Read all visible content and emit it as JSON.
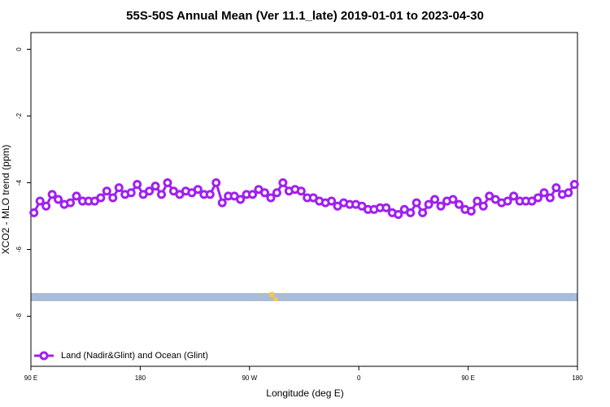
{
  "chart_data": {
    "type": "line",
    "title": "55S-50S Annual Mean (Ver 11.1_late)   2019-01-01 to 2023-04-30",
    "x_label": "Longitude (deg E)",
    "y_label": "XCO2 - MLO trend (ppm)",
    "xlim": [
      90,
      540
    ],
    "ylim": [
      -9.5,
      0.5
    ],
    "xticks": [
      {
        "value": 90,
        "label": "90 E"
      },
      180,
      {
        "value": 270,
        "label": "90 W"
      },
      {
        "value": 360,
        "label": "0"
      },
      {
        "value": 450,
        "label": "90 E"
      },
      {
        "value": 540,
        "label": "180"
      }
    ],
    "yticks": [
      0,
      -2,
      -4,
      -6,
      -8
    ],
    "legend": "bottom-left",
    "x": [
      92.5,
      97.5,
      102.5,
      107.5,
      112.5,
      117.5,
      122.5,
      127.5,
      132.5,
      137.5,
      142.5,
      147.5,
      152.5,
      157.5,
      162.5,
      167.5,
      172.5,
      177.5,
      182.5,
      187.5,
      192.5,
      197.5,
      202.5,
      207.5,
      212.5,
      217.5,
      222.5,
      227.5,
      232.5,
      237.5,
      242.5,
      247.5,
      252.5,
      257.5,
      262.5,
      267.5,
      272.5,
      277.5,
      282.5,
      287.5,
      292.5,
      297.5,
      302.5,
      307.5,
      312.5,
      317.5,
      322.5,
      327.5,
      332.5,
      337.5,
      342.5,
      347.5,
      352.5,
      357.5,
      362.5,
      367.5,
      372.5,
      377.5,
      382.5,
      387.5,
      392.5,
      397.5,
      402.5,
      407.5,
      412.5,
      417.5,
      422.5,
      427.5,
      432.5,
      437.5,
      442.5,
      447.5,
      452.5,
      457.5,
      462.5,
      467.5,
      472.5,
      477.5,
      482.5,
      487.5,
      492.5,
      497.5,
      502.5,
      507.5,
      512.5,
      517.5,
      522.5,
      527.5,
      532.5,
      537.5
    ],
    "series": [
      {
        "name": "Land (Nadir&Glint) and Ocean (Glint)",
        "color": "#a020f0",
        "values": [
          -4.9,
          -4.55,
          -4.7,
          -4.35,
          -4.5,
          -4.65,
          -4.6,
          -4.4,
          -4.55,
          -4.55,
          -4.55,
          -4.45,
          -4.25,
          -4.45,
          -4.15,
          -4.35,
          -4.3,
          -4.05,
          -4.35,
          -4.25,
          -4.1,
          -4.35,
          -4.0,
          -4.25,
          -4.35,
          -4.25,
          -4.3,
          -4.2,
          -4.35,
          -4.35,
          -4.0,
          -4.6,
          -4.4,
          -4.4,
          -4.5,
          -4.35,
          -4.35,
          -4.2,
          -4.3,
          -4.45,
          -4.3,
          -4.0,
          -4.25,
          -4.2,
          -4.25,
          -4.45,
          -4.45,
          -4.55,
          -4.6,
          -4.55,
          -4.7,
          -4.6,
          -4.65,
          -4.65,
          -4.7,
          -4.8,
          -4.8,
          -4.75,
          -4.75,
          -4.9,
          -4.95,
          -4.8,
          -4.9,
          -4.6,
          -4.9,
          -4.65,
          -4.5,
          -4.7,
          -4.55,
          -4.5,
          -4.65,
          -4.8,
          -4.85,
          -4.55,
          -4.7,
          -4.4,
          -4.5,
          -4.6,
          -4.55,
          -4.4,
          -4.55,
          -4.55,
          -4.55,
          -4.45,
          -4.3,
          -4.45,
          -4.15,
          -4.35,
          -4.3,
          -4.05
        ]
      }
    ]
  }
}
